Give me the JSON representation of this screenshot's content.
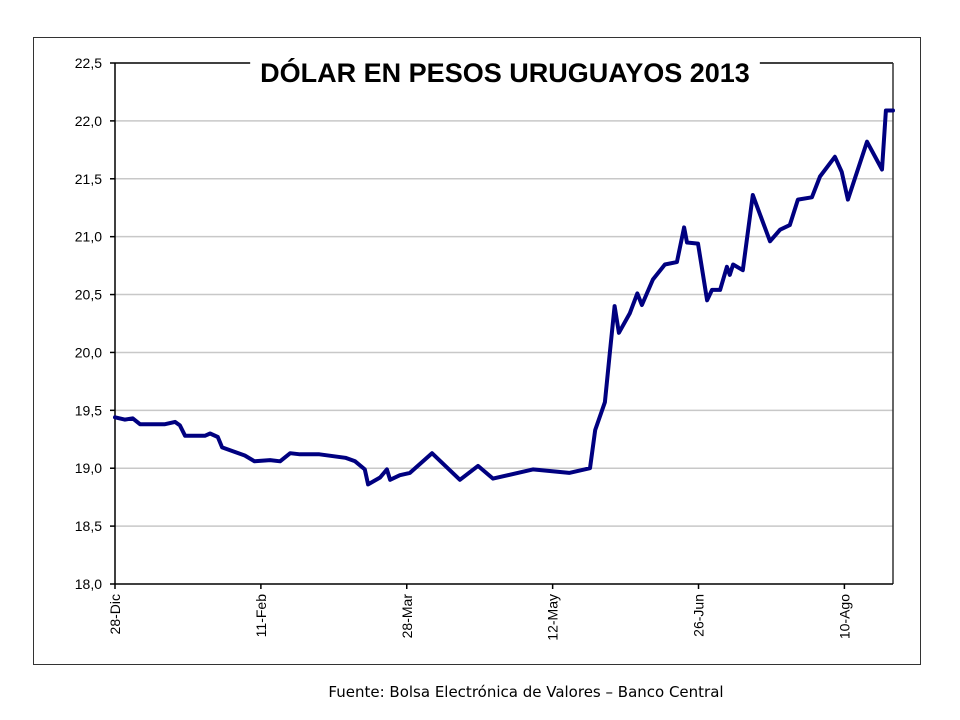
{
  "chart_data": {
    "type": "line",
    "title": "DÓLAR EN PESOS URUGUAYOS 2013",
    "xlabel": "",
    "ylabel": "",
    "x_unit": "days since 28-Dic",
    "xlim": [
      0,
      240
    ],
    "ylim": [
      18.0,
      22.5
    ],
    "yticks": [
      18.0,
      18.5,
      19.0,
      19.5,
      20.0,
      20.5,
      21.0,
      21.5,
      22.0,
      22.5
    ],
    "ytick_labels": [
      "18,0",
      "18,5",
      "19,0",
      "19,5",
      "20,0",
      "20,5",
      "21,0",
      "21,5",
      "22,0",
      "22,5"
    ],
    "xticks": [
      0,
      45,
      90,
      135,
      180,
      225
    ],
    "xtick_labels": [
      "28-Dic",
      "11-Feb",
      "28-Mar",
      "12-May",
      "26-Jun",
      "10-Ago"
    ],
    "grid": true,
    "legend": "none",
    "series": [
      {
        "name": "Dólar",
        "color": "#000080",
        "x": [
          0,
          3,
          5.5,
          7.7,
          15.4,
          18.5,
          20,
          21.6,
          27.7,
          29.3,
          31.7,
          33,
          37,
          40,
          43,
          47.8,
          50.9,
          54,
          57,
          63,
          71,
          74,
          77,
          78,
          81.7,
          83.8,
          84.8,
          87.8,
          90.9,
          97.7,
          106.3,
          111.9,
          116.5,
          128.8,
          140,
          146.4,
          148,
          151,
          152.6,
          154,
          155.3,
          158.7,
          161,
          162.4,
          165.8,
          169.5,
          173.2,
          175.4,
          176.3,
          179.7,
          182.5,
          184,
          186.5,
          188.6,
          189.5,
          190.5,
          193.5,
          196.6,
          201.9,
          205,
          208,
          210.5,
          214.8,
          217.3,
          221.9,
          224,
          225.9,
          231.8,
          236.4,
          237.6,
          239.8
        ],
        "values": [
          19.44,
          19.42,
          19.43,
          19.38,
          19.38,
          19.4,
          19.37,
          19.28,
          19.28,
          19.3,
          19.27,
          19.18,
          19.14,
          19.11,
          19.06,
          19.07,
          19.06,
          19.13,
          19.12,
          19.12,
          19.09,
          19.06,
          18.99,
          18.86,
          18.92,
          18.99,
          18.9,
          18.94,
          18.96,
          19.13,
          18.9,
          19.02,
          18.91,
          18.99,
          18.96,
          19.0,
          19.33,
          19.57,
          20.02,
          20.4,
          20.17,
          20.34,
          20.51,
          20.41,
          20.63,
          20.76,
          20.78,
          21.08,
          20.95,
          20.94,
          20.45,
          20.54,
          20.54,
          20.74,
          20.67,
          20.76,
          20.71,
          21.36,
          20.96,
          21.06,
          21.1,
          21.32,
          21.34,
          21.52,
          21.69,
          21.56,
          21.32,
          21.82,
          21.58,
          22.09,
          22.09
        ]
      }
    ]
  },
  "source_text": "Fuente: Bolsa Electrónica de Valores – Banco Central"
}
